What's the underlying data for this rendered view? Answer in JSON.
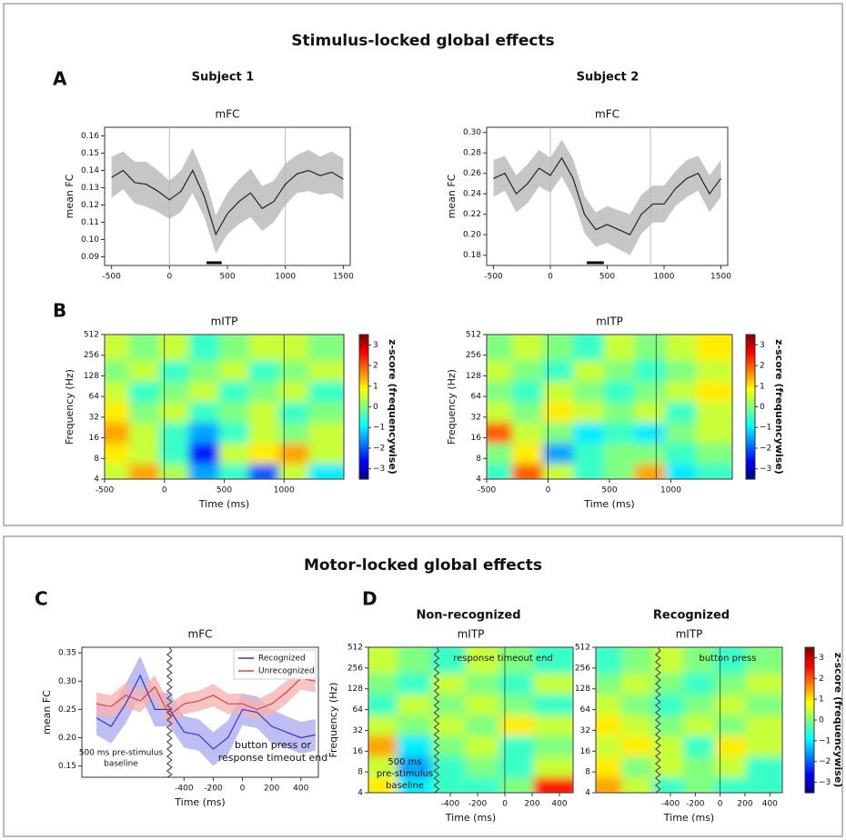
{
  "figure": {
    "sections": [
      "Stimulus-locked global effects",
      "Motor-locked global effects"
    ],
    "panels": [
      "A",
      "B",
      "C",
      "D"
    ],
    "columns": [
      "Subject 1",
      "Subject 2",
      "Non-recognized",
      "Recognized"
    ]
  },
  "chart_data": [
    {
      "type": "line",
      "title": "mFC",
      "ylabel": "mean FC",
      "xlim": [
        -560,
        1560
      ],
      "xticks": [
        {
          "value": -500,
          "label": "-500"
        },
        0,
        500,
        1000,
        1500
      ],
      "ylim": [
        0.085,
        0.165
      ],
      "yticks": [
        0.09,
        {
          "value": 0.1,
          "label": "0.10"
        },
        0.11,
        0.12,
        0.13,
        0.14,
        0.15,
        0.16
      ],
      "x": [
        -500,
        -400,
        -300,
        -200,
        -100,
        0,
        100,
        200,
        300,
        400,
        500,
        600,
        700,
        800,
        900,
        1000,
        1100,
        1200,
        1300,
        1400,
        1500
      ],
      "series": [
        {
          "color": "#222222",
          "band_color": "#b3b3b3",
          "values": [
            0.136,
            0.14,
            0.133,
            0.132,
            0.128,
            0.123,
            0.128,
            0.14,
            0.125,
            0.103,
            0.115,
            0.122,
            0.127,
            0.118,
            0.122,
            0.132,
            0.138,
            0.14,
            0.137,
            0.139,
            0.135
          ],
          "error": [
            0.012,
            0.011,
            0.012,
            0.013,
            0.012,
            0.011,
            0.012,
            0.013,
            0.012,
            0.011,
            0.012,
            0.013,
            0.014,
            0.013,
            0.012,
            0.012,
            0.011,
            0.012,
            0.011,
            0.012,
            0.012
          ]
        }
      ],
      "markers": [
        0,
        1000
      ],
      "significance": [
        320,
        450
      ]
    },
    {
      "type": "line",
      "title": "mFC",
      "ylabel": "mean FC",
      "xlim": [
        -560,
        1560
      ],
      "xticks": [
        {
          "value": -500,
          "label": "-500"
        },
        0,
        500,
        1000,
        1500
      ],
      "ylim": [
        0.17,
        0.305
      ],
      "yticks": [
        0.18,
        {
          "value": 0.2,
          "label": "0.20"
        },
        0.22,
        0.24,
        0.26,
        0.28,
        {
          "value": 0.3,
          "label": "0.30"
        }
      ],
      "x": [
        -500,
        -400,
        -300,
        -200,
        -100,
        0,
        100,
        200,
        300,
        400,
        500,
        600,
        700,
        800,
        900,
        1000,
        1100,
        1200,
        1300,
        1400,
        1500
      ],
      "series": [
        {
          "color": "#222222",
          "band_color": "#b3b3b3",
          "values": [
            0.255,
            0.26,
            0.24,
            0.25,
            0.265,
            0.258,
            0.275,
            0.255,
            0.22,
            0.205,
            0.21,
            0.205,
            0.2,
            0.22,
            0.23,
            0.23,
            0.245,
            0.255,
            0.26,
            0.24,
            0.255
          ],
          "error": [
            0.018,
            0.017,
            0.018,
            0.019,
            0.018,
            0.017,
            0.018,
            0.019,
            0.018,
            0.017,
            0.018,
            0.019,
            0.02,
            0.019,
            0.018,
            0.018,
            0.017,
            0.018,
            0.017,
            0.018,
            0.018
          ]
        }
      ],
      "markers": [
        0,
        880
      ],
      "significance": [
        320,
        470
      ]
    },
    {
      "type": "heatmap",
      "title": "mITP",
      "xlabel": "Time (ms)",
      "ylabel": "Frequency (Hz)",
      "xlim": [
        -500,
        1500
      ],
      "xticks": [
        {
          "value": -500,
          "label": "-500"
        },
        0,
        500,
        1000
      ],
      "ylim": [
        4,
        512
      ],
      "yscale": "log",
      "yticks": [
        4,
        8,
        16,
        32,
        64,
        128,
        256,
        512
      ],
      "zlim": [
        -3.5,
        3.5
      ],
      "zticks": [
        {
          "value": -3,
          "label": "−3"
        },
        {
          "value": -2,
          "label": "−2"
        },
        {
          "value": -1,
          "label": "−1"
        },
        0,
        1,
        2,
        3
      ],
      "zlabel": "z-score (frequencywise)",
      "colorbar": true,
      "markers": [
        0,
        1000
      ],
      "z": [
        [
          0.5,
          1.5,
          0.3,
          -1.5,
          -0.5,
          -2,
          0.5,
          -1
        ],
        [
          1,
          0.5,
          -0.5,
          -2.5,
          0.5,
          1,
          1.5,
          0.5
        ],
        [
          1.5,
          0.5,
          -0.5,
          -1.5,
          -0.5,
          0.5,
          0,
          0.5
        ],
        [
          1,
          0,
          0.5,
          -0.5,
          0,
          0.5,
          -0.5,
          0
        ],
        [
          0.5,
          -0.5,
          0,
          0.5,
          -0.5,
          0,
          0.5,
          -0.5
        ],
        [
          0,
          0.5,
          -0.5,
          0,
          0.5,
          -0.5,
          0,
          0.5
        ],
        [
          0.5,
          0,
          0.5,
          -0.5,
          0,
          0.5,
          0.5,
          0
        ]
      ]
    },
    {
      "type": "heatmap",
      "title": "mITP",
      "xlabel": "Time (ms)",
      "ylabel": "Frequency (Hz)",
      "xlim": [
        -500,
        1500
      ],
      "xticks": [
        {
          "value": -500,
          "label": "-500"
        },
        0,
        500,
        1000
      ],
      "ylim": [
        4,
        512
      ],
      "yscale": "log",
      "yticks": [
        4,
        8,
        16,
        32,
        64,
        128,
        256,
        512
      ],
      "zlim": [
        -3.5,
        3.5
      ],
      "zticks": [
        {
          "value": -3,
          "label": "−3"
        },
        {
          "value": -2,
          "label": "−2"
        },
        {
          "value": -1,
          "label": "−1"
        },
        0,
        1,
        2,
        3
      ],
      "zlabel": "z-score (frequencywise)",
      "colorbar": true,
      "markers": [
        0,
        880
      ],
      "z": [
        [
          -0.5,
          2,
          0.5,
          -0.5,
          0,
          1.5,
          -1,
          -0.5
        ],
        [
          0,
          1,
          -1.5,
          -0.5,
          0,
          0,
          -0.5,
          0
        ],
        [
          2,
          0.5,
          0,
          -1,
          -0.5,
          -1,
          0,
          0.5
        ],
        [
          0.5,
          0,
          1,
          0.5,
          0,
          0.5,
          -0.5,
          0.5
        ],
        [
          0,
          -0.5,
          0.5,
          0,
          -0.5,
          0,
          0.5,
          1
        ],
        [
          0.5,
          0,
          -0.5,
          0.5,
          0,
          -0.5,
          0,
          0.5
        ],
        [
          0,
          0.5,
          0,
          -0.5,
          0.5,
          0,
          0.5,
          1
        ]
      ]
    },
    {
      "type": "line",
      "title": "mFC",
      "ylabel": "mean FC",
      "xlabel": "Time (ms)",
      "legend": "upper right",
      "xlim": [
        -1100,
        520
      ],
      "xticks": [
        {
          "value": -400,
          "label": "-400"
        },
        {
          "value": -200,
          "label": "-200"
        },
        0,
        200,
        400
      ],
      "ylim": [
        0.13,
        0.36
      ],
      "yticks": [
        0.15,
        {
          "value": 0.2,
          "label": "0.20"
        },
        0.25,
        {
          "value": 0.3,
          "label": "0.30"
        },
        0.35
      ],
      "divider": -500,
      "annotations": [
        [
          "500 ms pre-stimulus",
          "baseline"
        ],
        [
          "button press or",
          "response timeout end"
        ]
      ],
      "x": [
        -1000,
        -900,
        -800,
        -700,
        -600,
        -500,
        -400,
        -300,
        -200,
        -100,
        0,
        100,
        200,
        300,
        400,
        500
      ],
      "series": [
        {
          "name": "Recognized",
          "color": "#3535d0",
          "band_color": "#a8a8f0",
          "values": [
            0.235,
            0.22,
            0.26,
            0.31,
            0.25,
            0.25,
            0.21,
            0.205,
            0.18,
            0.2,
            0.25,
            0.245,
            0.22,
            0.21,
            0.2,
            0.205
          ],
          "error": [
            0.03,
            0.03,
            0.035,
            0.035,
            0.03,
            0.03,
            0.028,
            0.028,
            0.03,
            0.03,
            0.028,
            0.028,
            0.03,
            0.028,
            0.028,
            0.028
          ]
        },
        {
          "name": "Unrecognized",
          "color": "#e04040",
          "band_color": "#f4b0b0",
          "values": [
            0.26,
            0.255,
            0.275,
            0.265,
            0.29,
            0.24,
            0.26,
            0.265,
            0.275,
            0.26,
            0.26,
            0.25,
            0.26,
            0.28,
            0.305,
            0.3
          ],
          "error": [
            0.02,
            0.02,
            0.022,
            0.02,
            0.02,
            0.02,
            0.018,
            0.018,
            0.02,
            0.018,
            0.018,
            0.018,
            0.02,
            0.02,
            0.02,
            0.02
          ]
        }
      ]
    },
    {
      "type": "heatmap",
      "title": "mITP",
      "xlabel": "Time (ms)",
      "ylabel": "Frequency (Hz)",
      "xlim": [
        -1000,
        500
      ],
      "xticks": [
        {
          "value": -400,
          "label": "-400"
        },
        {
          "value": -200,
          "label": "-200"
        },
        0,
        200,
        400
      ],
      "ylim": [
        4,
        512
      ],
      "yscale": "log",
      "yticks": [
        4,
        8,
        16,
        32,
        64,
        128,
        256,
        512
      ],
      "zlim": [
        -3.5,
        3.5
      ],
      "colorbar": false,
      "markers": [
        0
      ],
      "divider": -500,
      "annotations": [
        [
          "500 ms",
          "pre-stimulus",
          "baseline"
        ],
        [
          "response timeout end"
        ]
      ],
      "z": [
        [
          1,
          -1,
          -0.5,
          -0.5,
          0,
          2.5
        ],
        [
          0.5,
          -1.5,
          -0.5,
          0,
          -0.5,
          0.5
        ],
        [
          1.5,
          -1,
          0,
          0.5,
          -0.5,
          0
        ],
        [
          0.5,
          0,
          0.5,
          0,
          1,
          0.5
        ],
        [
          -0.5,
          0.5,
          0,
          0.5,
          0,
          -0.5
        ],
        [
          0,
          -0.5,
          0.5,
          0,
          -0.5,
          0.5
        ],
        [
          0.5,
          0,
          -0.5,
          0.5,
          0,
          -0.5
        ]
      ]
    },
    {
      "type": "heatmap",
      "title": "mITP",
      "xlabel": "Time (ms)",
      "xlim": [
        -1000,
        500
      ],
      "xticks": [
        {
          "value": -400,
          "label": "-400"
        },
        {
          "value": -200,
          "label": "-200"
        },
        0,
        200,
        400
      ],
      "ylim": [
        4,
        512
      ],
      "yscale": "log",
      "yticks": [
        4,
        8,
        16,
        32,
        64,
        128,
        256,
        512
      ],
      "zlim": [
        -3.5,
        3.5
      ],
      "zticks": [
        {
          "value": -3,
          "label": "−3"
        },
        {
          "value": -2,
          "label": "−2"
        },
        {
          "value": -1,
          "label": "−1"
        },
        0,
        1,
        2,
        3
      ],
      "zlabel": "z-score (frequencywise)",
      "colorbar": true,
      "markers": [
        0
      ],
      "divider": -500,
      "annotations": [
        [
          "button press"
        ]
      ],
      "z": [
        [
          1.5,
          0.5,
          -0.5,
          0,
          -0.5,
          -0.5
        ],
        [
          1,
          0,
          0.5,
          0,
          0.5,
          -0.5
        ],
        [
          0.5,
          1,
          0.5,
          -0.5,
          1,
          0.5
        ],
        [
          1,
          0.5,
          0,
          0.5,
          0,
          0.5
        ],
        [
          0.5,
          0,
          -0.5,
          0,
          0.5,
          0
        ],
        [
          0,
          0.5,
          0,
          -0.5,
          0,
          0.5
        ],
        [
          -0.5,
          0,
          0.5,
          0,
          -0.5,
          0
        ]
      ]
    }
  ]
}
